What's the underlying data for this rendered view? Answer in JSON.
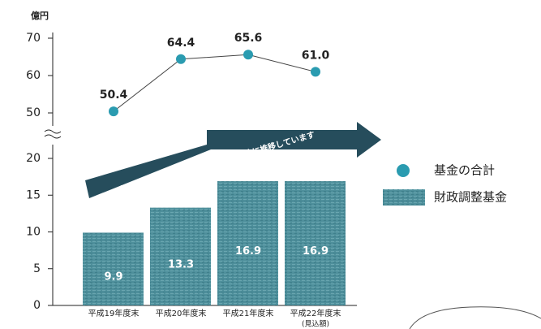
{
  "chart_data": {
    "type": "combo",
    "y_label": "億円",
    "annotation": "基金は目安となる額を確保し、安定的に推移しています",
    "categories": [
      "平成19年度末",
      "平成20年度末",
      "平成21年度末",
      "平成22年度末"
    ],
    "category_notes": [
      null,
      null,
      null,
      "(見込額)"
    ],
    "ylim": [
      0,
      20
    ],
    "yticks": [
      0,
      5,
      10,
      15,
      20
    ],
    "y2lim": [
      50,
      70
    ],
    "y2ticks": [
      50,
      60,
      70
    ],
    "series": [
      {
        "name": "基金の合計",
        "type": "line",
        "axis": "y2",
        "color": "#2a9bb0",
        "values": [
          50.4,
          64.4,
          65.6,
          61.0
        ],
        "value_labels": [
          "50.4",
          "64.4",
          "65.6",
          "61.0"
        ]
      },
      {
        "name": "財政調整基金",
        "type": "bar",
        "color": "#4e8f9b",
        "values": [
          9.9,
          13.3,
          16.9,
          16.9
        ]
      }
    ]
  }
}
